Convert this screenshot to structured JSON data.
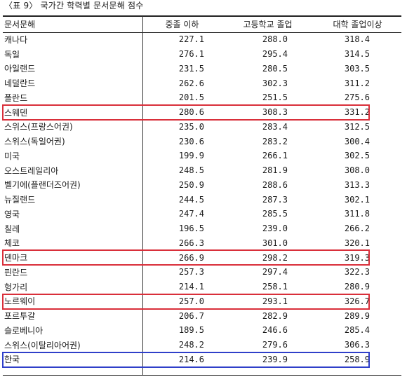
{
  "caption": "〈표 9〉 국가간 학력별 문서문해 점수",
  "table": {
    "headers": [
      "문서문해",
      "중졸 이하",
      "고등학교 졸업",
      "대학 졸업이상"
    ],
    "rows": [
      {
        "country": "캐나다",
        "v1": "227.1",
        "v2": "288.0",
        "v3": "318.4"
      },
      {
        "country": "독일",
        "v1": "276.1",
        "v2": "295.4",
        "v3": "314.5"
      },
      {
        "country": "아일랜드",
        "v1": "231.5",
        "v2": "280.5",
        "v3": "303.5"
      },
      {
        "country": "네덜란드",
        "v1": "262.6",
        "v2": "302.3",
        "v3": "311.2"
      },
      {
        "country": "폴란드",
        "v1": "201.5",
        "v2": "251.5",
        "v3": "275.6"
      },
      {
        "country": "스웨덴",
        "v1": "280.6",
        "v2": "308.3",
        "v3": "331.2"
      },
      {
        "country": "스위스(프랑스어권)",
        "v1": "235.0",
        "v2": "283.4",
        "v3": "312.5"
      },
      {
        "country": "스위스(독일어권)",
        "v1": "230.6",
        "v2": "283.2",
        "v3": "300.4"
      },
      {
        "country": "미국",
        "v1": "199.9",
        "v2": "266.1",
        "v3": "302.5"
      },
      {
        "country": "오스트레일리아",
        "v1": "248.5",
        "v2": "281.9",
        "v3": "308.0"
      },
      {
        "country": "벨기에(플랜더즈어권)",
        "v1": "250.9",
        "v2": "288.6",
        "v3": "313.3"
      },
      {
        "country": "뉴질랜드",
        "v1": "244.5",
        "v2": "287.3",
        "v3": "302.1"
      },
      {
        "country": "영국",
        "v1": "247.4",
        "v2": "285.5",
        "v3": "311.8"
      },
      {
        "country": "칠레",
        "v1": "196.5",
        "v2": "239.0",
        "v3": "266.2"
      },
      {
        "country": "체코",
        "v1": "266.3",
        "v2": "301.0",
        "v3": "320.1"
      },
      {
        "country": "덴마크",
        "v1": "266.9",
        "v2": "298.2",
        "v3": "319.3"
      },
      {
        "country": "핀란드",
        "v1": "257.3",
        "v2": "297.4",
        "v3": "322.3"
      },
      {
        "country": "헝가리",
        "v1": "214.1",
        "v2": "258.1",
        "v3": "280.9"
      },
      {
        "country": "노르웨이",
        "v1": "257.0",
        "v2": "293.1",
        "v3": "326.7"
      },
      {
        "country": "포르투갈",
        "v1": "206.7",
        "v2": "282.9",
        "v3": "289.9"
      },
      {
        "country": "슬로베니아",
        "v1": "189.5",
        "v2": "246.6",
        "v3": "285.4"
      },
      {
        "country": "스위스(이탈리아어권)",
        "v1": "248.2",
        "v2": "279.6",
        "v3": "306.3"
      },
      {
        "country": "한국",
        "v1": "214.6",
        "v2": "239.9",
        "v3": "258.9"
      }
    ]
  },
  "highlights": {
    "red_color": "#d92f3a",
    "blue_color": "#2f3fc9",
    "red_rows": [
      "스웨덴",
      "덴마크",
      "노르웨이"
    ],
    "blue_rows": [
      "한국"
    ]
  }
}
